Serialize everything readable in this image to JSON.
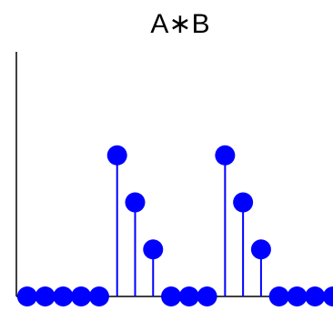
{
  "chart_data": {
    "type": "stem",
    "title": "A∗B",
    "x": [
      0,
      1,
      2,
      3,
      4,
      5,
      6,
      7,
      8,
      9,
      10,
      11,
      12,
      13,
      14,
      15,
      16,
      17
    ],
    "values": [
      0,
      0,
      0,
      0,
      0,
      3,
      2,
      1,
      0,
      0,
      0,
      3,
      2,
      1,
      0,
      0,
      0,
      0
    ],
    "xlim": [
      -0.6,
      17
    ],
    "ylim": [
      0,
      5.2
    ],
    "x_ticks": [],
    "y_ticks": [],
    "grid": false,
    "marker_color": "#0000ff",
    "axis_color": "#000000"
  }
}
